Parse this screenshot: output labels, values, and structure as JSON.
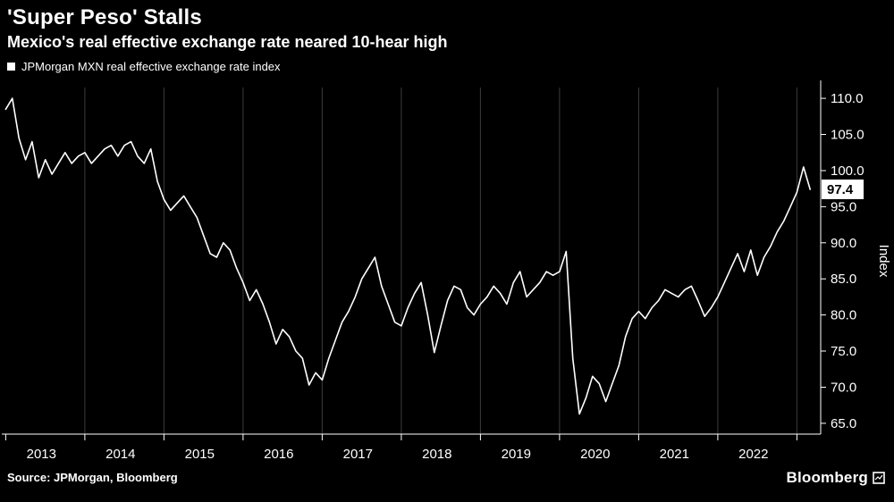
{
  "header": {
    "title": "'Super Peso' Stalls",
    "subtitle": "Mexico's real effective exchange rate neared 10-hear high"
  },
  "legend": {
    "label": "JPMorgan MXN real effective exchange rate index",
    "marker_color": "#ffffff"
  },
  "footer": {
    "source": "Source: JPMorgan, Bloomberg",
    "brand": "Bloomberg"
  },
  "colors": {
    "background": "#000000",
    "text": "#ffffff",
    "line": "#ffffff",
    "grid": "#3d3d3d",
    "axis": "#ffffff",
    "value_box_bg": "#ffffff",
    "value_box_text": "#000000"
  },
  "chart_data": {
    "type": "line",
    "title": "'Super Peso' Stalls",
    "subtitle": "Mexico's real effective exchange rate neared 10-hear high",
    "xlabel": "",
    "ylabel": "Index",
    "legend_position": "top-left",
    "grid": "vertical-only",
    "xlim": [
      2012.95,
      2023.3
    ],
    "ylim": [
      63.5,
      111.5
    ],
    "yticks": [
      65,
      70,
      75,
      80,
      85,
      90,
      95,
      100,
      105,
      110
    ],
    "gridline_years": [
      2014,
      2015,
      2016,
      2017,
      2018,
      2019,
      2020,
      2021,
      2022,
      2023
    ],
    "xticks_labels": [
      "2013",
      "2014",
      "2015",
      "2016",
      "2017",
      "2018",
      "2019",
      "2020",
      "2021",
      "2022"
    ],
    "last_value_label": "97.4",
    "series": [
      {
        "name": "JPMorgan MXN real effective exchange rate index",
        "x_start": 2013.0,
        "x_step_years": 0.0833333,
        "x_unit": "decimal year (monthly)",
        "values": [
          108.5,
          110.0,
          104.5,
          101.5,
          104.0,
          99.0,
          101.5,
          99.5,
          101.0,
          102.5,
          101.0,
          102.0,
          102.5,
          101.0,
          102.0,
          103.0,
          103.5,
          102.0,
          103.5,
          104.0,
          102.0,
          101.0,
          103.0,
          98.5,
          96.0,
          94.5,
          95.5,
          96.5,
          95.0,
          93.5,
          91.0,
          88.5,
          88.0,
          90.0,
          89.0,
          86.5,
          84.5,
          82.0,
          83.5,
          81.5,
          79.0,
          76.0,
          78.0,
          77.0,
          75.0,
          74.0,
          70.3,
          72.0,
          71.0,
          74.0,
          76.5,
          79.0,
          80.5,
          82.5,
          85.0,
          86.5,
          88.0,
          84.0,
          81.5,
          79.0,
          78.5,
          81.0,
          83.0,
          84.5,
          80.0,
          74.8,
          78.5,
          82.0,
          84.0,
          83.5,
          81.0,
          80.0,
          81.5,
          82.5,
          84.0,
          83.0,
          81.5,
          84.5,
          86.0,
          82.5,
          83.5,
          84.5,
          86.0,
          85.5,
          86.0,
          88.8,
          74.0,
          66.3,
          68.5,
          71.5,
          70.5,
          68.0,
          70.5,
          73.0,
          77.0,
          79.5,
          80.5,
          79.5,
          81.0,
          82.0,
          83.5,
          83.0,
          82.5,
          83.5,
          84.0,
          82.0,
          79.8,
          81.0,
          82.5,
          84.5,
          86.5,
          88.5,
          86.0,
          89.0,
          85.5,
          88.0,
          89.5,
          91.5,
          93.0,
          95.0,
          97.0,
          100.5,
          97.4
        ]
      }
    ]
  }
}
